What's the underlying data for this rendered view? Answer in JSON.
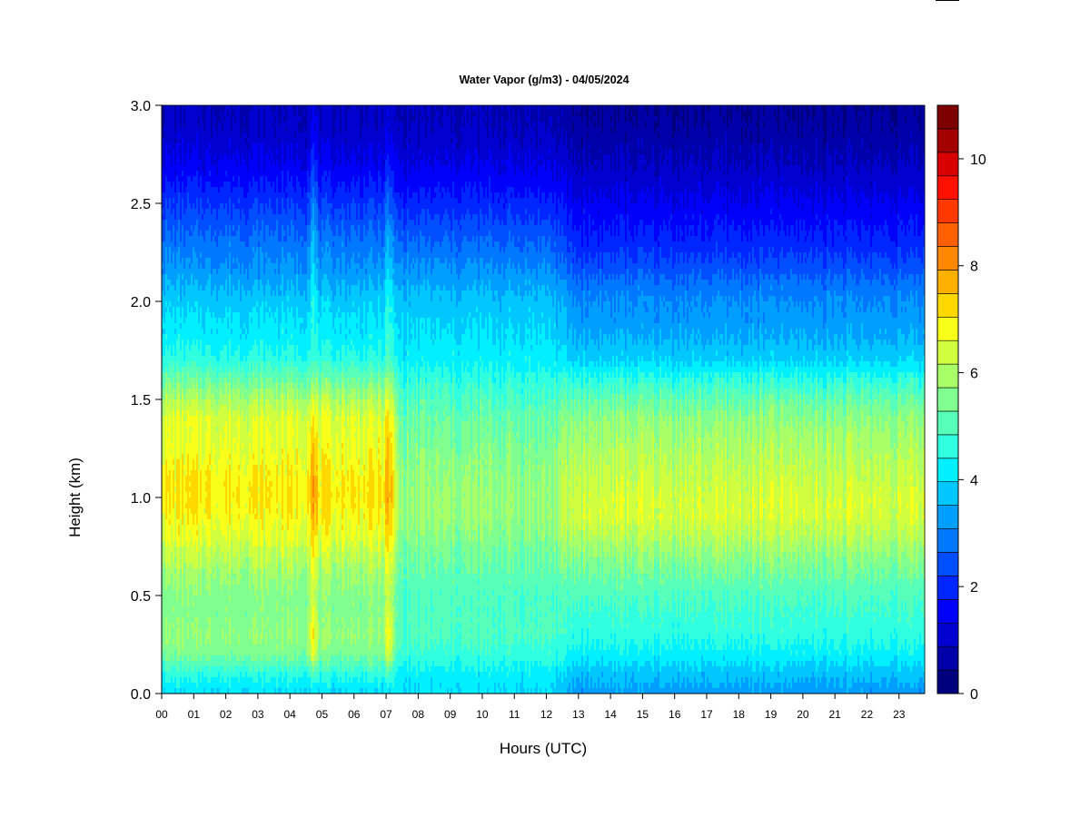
{
  "chart_data": {
    "type": "heatmap",
    "title": "Water Vapor (g/m3) - 04/05/2024",
    "xlabel": "Hours (UTC)",
    "ylabel": "Height (km)",
    "xlim": [
      0,
      23.8
    ],
    "ylim": [
      0,
      3.0
    ],
    "x_ticks": [
      "00",
      "01",
      "02",
      "03",
      "04",
      "05",
      "06",
      "07",
      "08",
      "09",
      "10",
      "11",
      "12",
      "13",
      "14",
      "15",
      "16",
      "17",
      "18",
      "19",
      "20",
      "21",
      "22",
      "23"
    ],
    "y_ticks": [
      "0.0",
      "0.5",
      "1.0",
      "1.5",
      "2.0",
      "2.5",
      "3.0"
    ],
    "colorbar": {
      "min": 0,
      "max": 10.5,
      "step": 0.5,
      "ticks": [
        "0",
        "2",
        "4",
        "6",
        "8",
        "10"
      ],
      "colors": [
        "#00007F",
        "#0000A8",
        "#0000D1",
        "#0000FA",
        "#0026FF",
        "#004EFF",
        "#0077FF",
        "#009FFF",
        "#00C8FF",
        "#00F0FF",
        "#30FFE0",
        "#58FFB8",
        "#80FF90",
        "#A8FF68",
        "#D0FF40",
        "#F8FF18",
        "#FFD800",
        "#FFB000",
        "#FF8800",
        "#FF6000",
        "#FF3800",
        "#FF1000",
        "#D80000",
        "#A50000",
        "#7F0000"
      ]
    },
    "profile_heights_km": [
      0.0,
      0.1,
      0.2,
      0.3,
      0.4,
      0.5,
      0.6,
      0.7,
      0.8,
      0.9,
      1.0,
      1.1,
      1.2,
      1.3,
      1.4,
      1.5,
      1.6,
      1.7,
      1.8,
      1.9,
      2.0,
      2.1,
      2.2,
      2.3,
      2.4,
      2.5,
      2.6,
      2.7,
      2.8,
      2.9,
      3.0
    ],
    "profiles": [
      {
        "regime": "morning",
        "hours": [
          0.0,
          7.3
        ],
        "values": [
          4.5,
          5.2,
          6.2,
          6.5,
          6.3,
          6.3,
          6.6,
          7.0,
          7.5,
          7.8,
          8.0,
          7.9,
          7.7,
          7.5,
          7.4,
          6.8,
          6.0,
          5.2,
          4.8,
          4.6,
          4.3,
          3.9,
          3.5,
          3.2,
          2.8,
          2.4,
          2.0,
          1.6,
          1.3,
          1.1,
          1.0
        ]
      },
      {
        "regime": "midday",
        "hours": [
          7.3,
          12.5
        ],
        "values": [
          4.5,
          4.8,
          5.3,
          5.6,
          5.6,
          5.6,
          5.8,
          6.0,
          6.3,
          6.5,
          6.5,
          6.4,
          6.3,
          6.1,
          5.9,
          5.6,
          5.2,
          4.8,
          4.6,
          4.4,
          4.2,
          3.8,
          3.4,
          3.0,
          2.6,
          2.2,
          1.8,
          1.5,
          1.2,
          1.0,
          0.9
        ]
      },
      {
        "regime": "afternoon",
        "hours": [
          12.5,
          23.8
        ],
        "values": [
          3.7,
          4.2,
          4.8,
          5.2,
          5.4,
          5.6,
          6.0,
          6.4,
          6.9,
          7.3,
          7.3,
          7.1,
          6.9,
          6.7,
          6.4,
          5.9,
          5.2,
          4.4,
          4.0,
          3.7,
          3.5,
          3.1,
          2.6,
          2.2,
          1.9,
          1.6,
          1.3,
          1.0,
          0.8,
          0.6,
          0.5
        ]
      }
    ],
    "moist_columns": [
      {
        "hour": 4.72,
        "added": [
          0.0,
          0.4,
          1.4,
          1.7,
          1.3,
          1.0,
          0.9,
          0.8,
          0.8,
          0.9,
          1.0,
          1.0,
          1.0,
          0.8,
          0.6,
          0.4,
          0.3,
          0.3,
          0.4,
          0.5,
          0.7,
          0.8,
          0.9,
          1.0,
          1.0,
          1.0,
          0.9,
          0.8,
          0.7,
          0.6,
          0.5
        ]
      },
      {
        "hour": 7.08,
        "added": [
          0.0,
          0.3,
          1.2,
          1.5,
          1.1,
          0.9,
          0.8,
          0.7,
          0.7,
          0.8,
          0.8,
          0.9,
          0.9,
          0.8,
          0.7,
          0.6,
          0.5,
          0.5,
          0.6,
          0.7,
          0.8,
          0.8,
          0.8,
          0.8,
          0.8,
          0.7,
          0.6,
          0.5,
          0.4,
          0.3,
          0.3
        ]
      }
    ]
  }
}
